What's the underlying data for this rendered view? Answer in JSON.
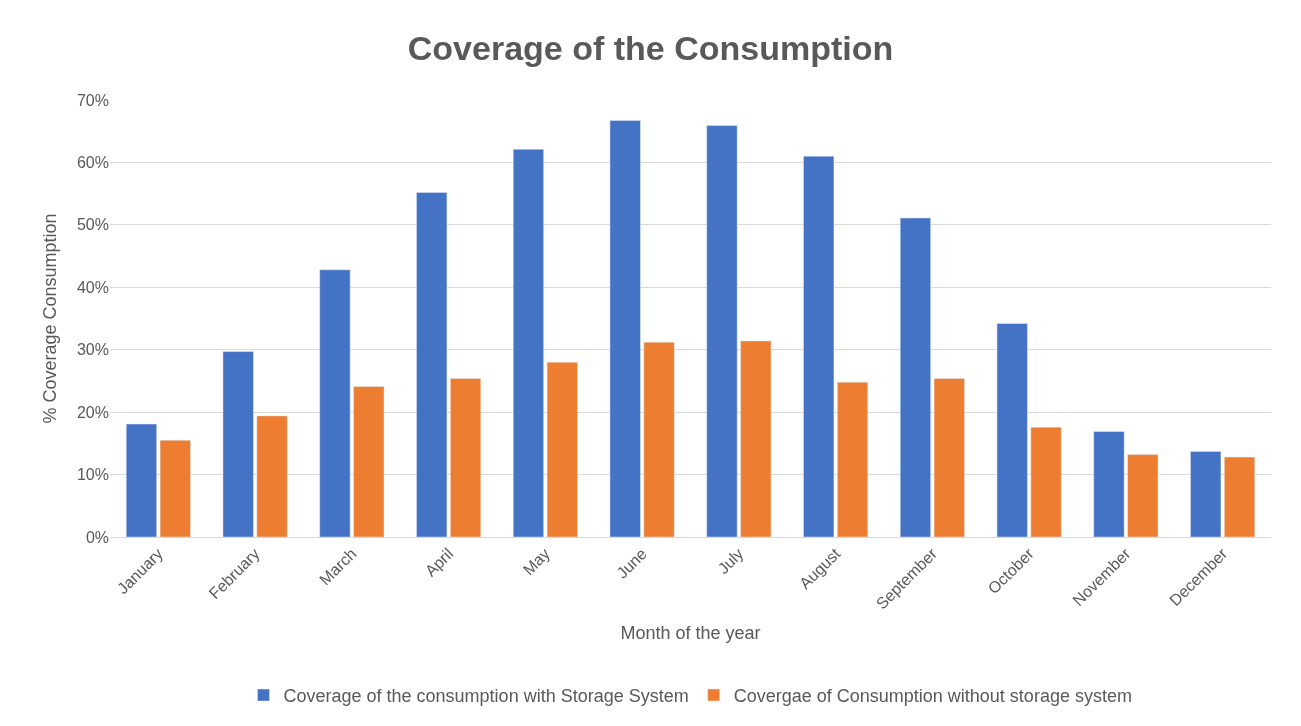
{
  "chart_data": {
    "type": "bar",
    "title": "Coverage of the Consumption",
    "xlabel": "Month of the year",
    "ylabel": "% Coverage Consumption",
    "categories": [
      "January",
      "February",
      "March",
      "April",
      "May",
      "June",
      "July",
      "August",
      "September",
      "October",
      "November",
      "December"
    ],
    "series": [
      {
        "name": "Coverage of the consumption with Storage System",
        "color": "#4472c4",
        "values": [
          18.1,
          29.7,
          42.8,
          55.2,
          62.1,
          66.7,
          65.9,
          61.0,
          51.1,
          34.2,
          16.9,
          13.7
        ]
      },
      {
        "name": "Covergae of Consumption without storage system",
        "color": "#ed7d31",
        "values": [
          15.5,
          19.4,
          24.1,
          25.4,
          28.0,
          31.2,
          31.4,
          24.8,
          25.4,
          17.6,
          13.2,
          12.8
        ]
      }
    ],
    "ylim": [
      0,
      70
    ],
    "yticks": [
      {
        "value": 0,
        "label": "0%"
      },
      {
        "value": 10,
        "label": "10%"
      },
      {
        "value": 20,
        "label": "20%"
      },
      {
        "value": 30,
        "label": "30%"
      },
      {
        "value": 40,
        "label": "40%"
      },
      {
        "value": 50,
        "label": "50%"
      },
      {
        "value": 60,
        "label": "60%"
      },
      {
        "value": 70,
        "label": "70%"
      }
    ],
    "grid": "y",
    "legend": "bottom"
  }
}
